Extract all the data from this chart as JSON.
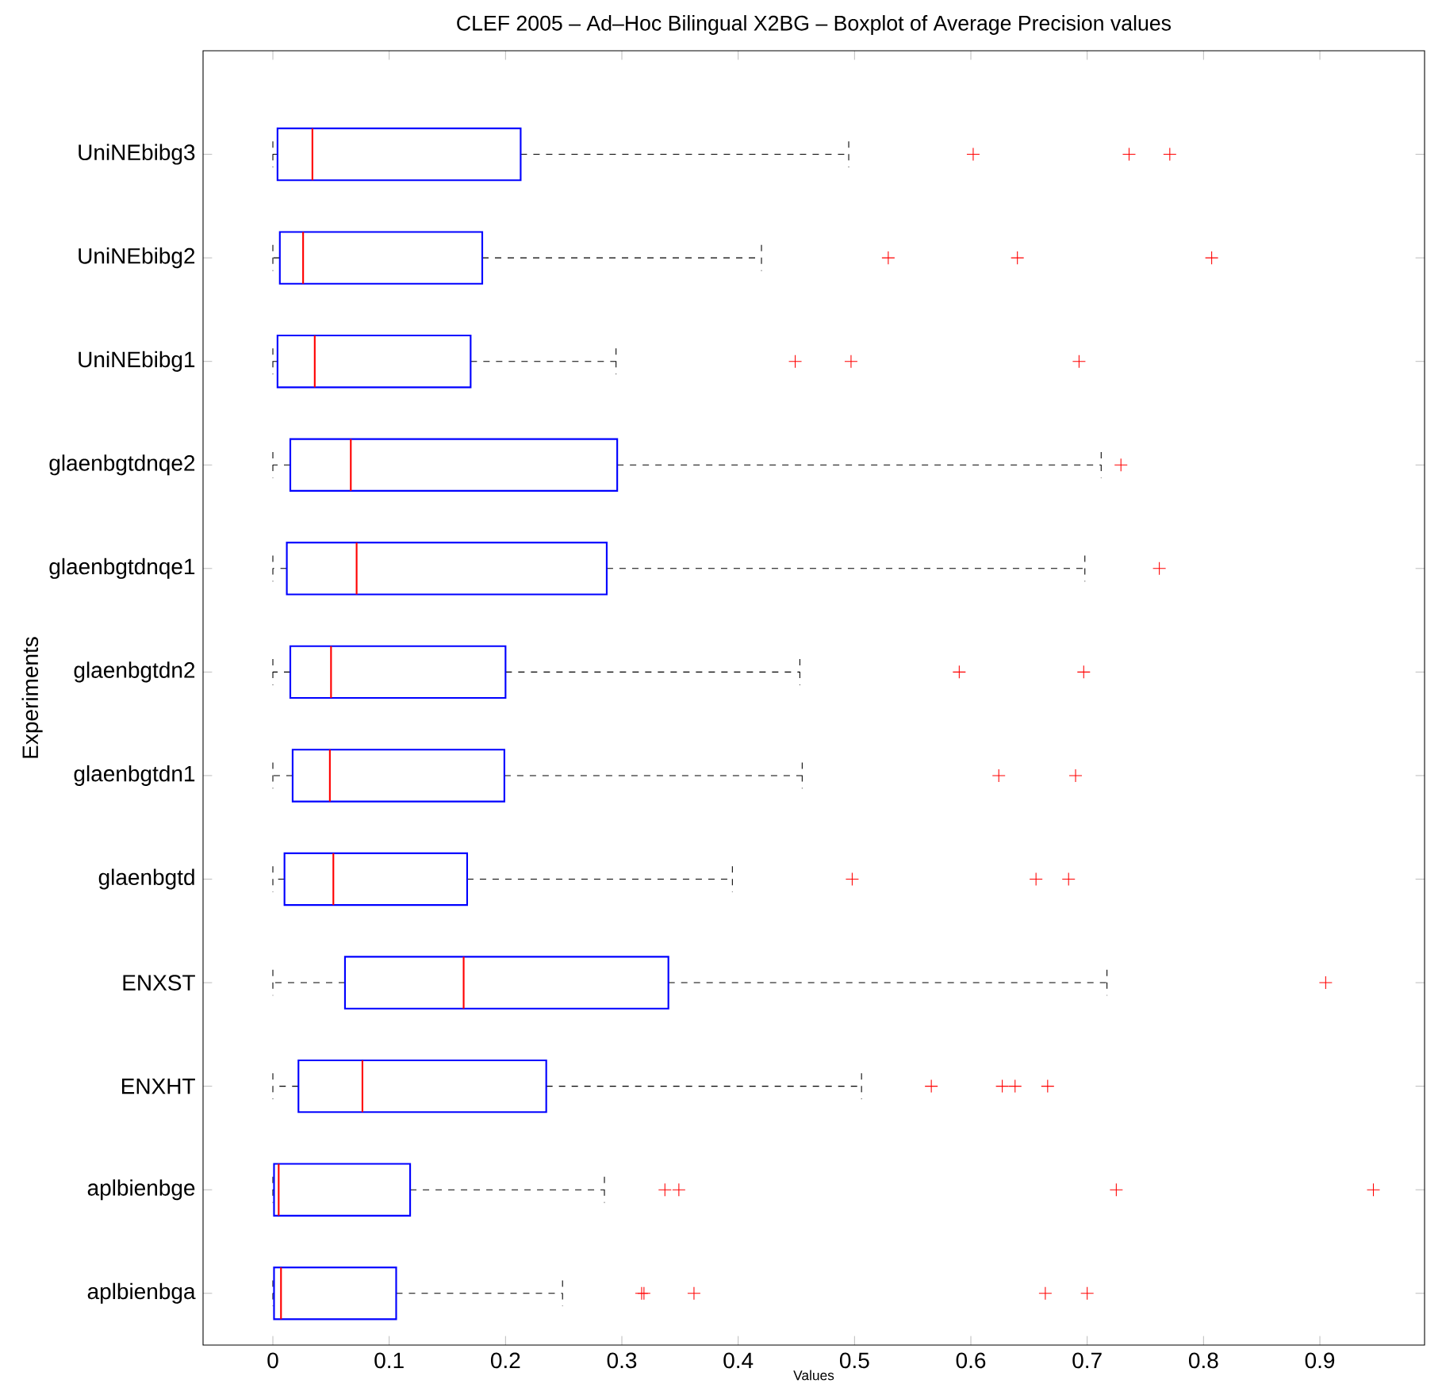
{
  "chart_data": {
    "type": "box",
    "orientation": "horizontal",
    "title": "CLEF 2005 – Ad–Hoc Bilingual X2BG – Boxplot of Average Precision values",
    "xlabel": "Values",
    "ylabel": "Experiments",
    "categories": [
      "UniNEbibg3",
      "UniNEbibg2",
      "UniNEbibg1",
      "glaenbgtdnqe2",
      "glaenbgtdnqe1",
      "glaenbgtdn2",
      "glaenbgtdn1",
      "glaenbgtd",
      "ENXST",
      "ENXHT",
      "aplbienbge",
      "aplbienbga"
    ],
    "xlim": [
      -0.06,
      0.99
    ],
    "xticks": [
      0,
      0.1,
      0.2,
      0.3,
      0.4,
      0.5,
      0.6,
      0.7,
      0.8,
      0.9
    ],
    "grid": false,
    "series": [
      {
        "color": "#0000ff",
        "boxes": [
          {
            "low": 0,
            "q1": 0.004,
            "median": 0.034,
            "q3": 0.213,
            "high": 0.495,
            "outliers": [
              0.602,
              0.736,
              0.771
            ]
          },
          {
            "low": 0,
            "q1": 0.006,
            "median": 0.026,
            "q3": 0.18,
            "high": 0.42,
            "outliers": [
              0.529,
              0.64,
              0.807
            ]
          },
          {
            "low": 0,
            "q1": 0.004,
            "median": 0.036,
            "q3": 0.17,
            "high": 0.295,
            "outliers": [
              0.449,
              0.497,
              0.693
            ]
          },
          {
            "low": 0,
            "q1": 0.015,
            "median": 0.067,
            "q3": 0.296,
            "high": 0.712,
            "outliers": [
              0.729
            ]
          },
          {
            "low": 0,
            "q1": 0.012,
            "median": 0.072,
            "q3": 0.287,
            "high": 0.698,
            "outliers": [
              0.762
            ]
          },
          {
            "low": 0,
            "q1": 0.015,
            "median": 0.05,
            "q3": 0.2,
            "high": 0.453,
            "outliers": [
              0.59,
              0.697
            ]
          },
          {
            "low": 0,
            "q1": 0.017,
            "median": 0.049,
            "q3": 0.199,
            "high": 0.455,
            "outliers": [
              0.624,
              0.69
            ]
          },
          {
            "low": 0,
            "q1": 0.01,
            "median": 0.052,
            "q3": 0.167,
            "high": 0.395,
            "outliers": [
              0.498,
              0.656,
              0.684
            ]
          },
          {
            "low": 0,
            "q1": 0.062,
            "median": 0.164,
            "q3": 0.34,
            "high": 0.717,
            "outliers": [
              0.905
            ]
          },
          {
            "low": 0,
            "q1": 0.022,
            "median": 0.077,
            "q3": 0.235,
            "high": 0.506,
            "outliers": [
              0.566,
              0.627,
              0.638,
              0.666
            ]
          },
          {
            "low": 0,
            "q1": 0.001,
            "median": 0.005,
            "q3": 0.118,
            "high": 0.285,
            "outliers": [
              0.337,
              0.349,
              0.725,
              0.946
            ]
          },
          {
            "low": 0,
            "q1": 0.001,
            "median": 0.007,
            "q3": 0.106,
            "high": 0.249,
            "outliers": [
              0.317,
              0.319,
              0.362,
              0.664,
              0.7
            ]
          }
        ]
      }
    ]
  }
}
